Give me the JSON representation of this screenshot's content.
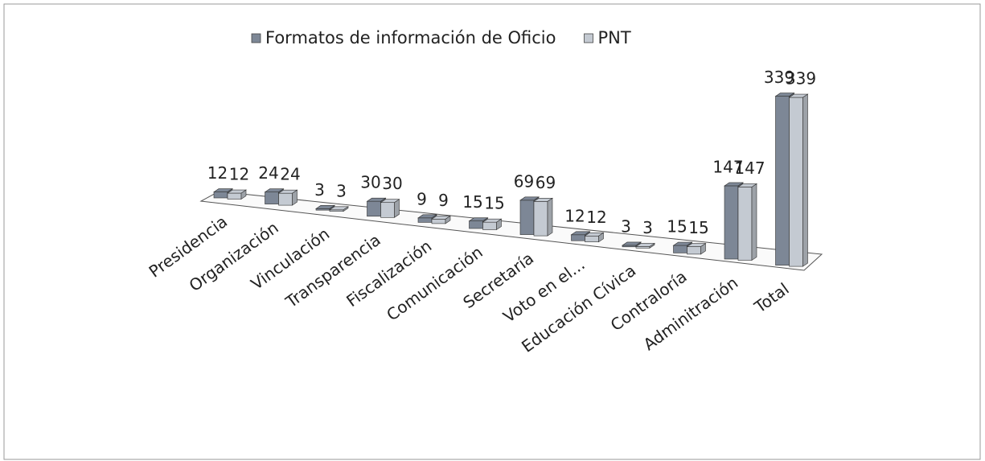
{
  "chart_data": {
    "type": "bar",
    "categories": [
      "Presidencia",
      "Organización",
      "Vinculación",
      "Transparencia",
      "Fiscalización",
      "Comunicación",
      "Secretaría",
      "Voto en el...",
      "Educación Cívica",
      "Contraloría",
      "Adminitración",
      "Total"
    ],
    "series": [
      {
        "name": "Formatos de información de Oficio",
        "color": "#7d8796",
        "values": [
          12,
          24,
          3,
          30,
          9,
          15,
          69,
          12,
          3,
          15,
          147,
          339
        ]
      },
      {
        "name": "PNT",
        "color": "#c4cad2",
        "values": [
          12,
          24,
          3,
          30,
          9,
          15,
          69,
          12,
          3,
          15,
          147,
          339
        ]
      }
    ],
    "legend": "top"
  }
}
